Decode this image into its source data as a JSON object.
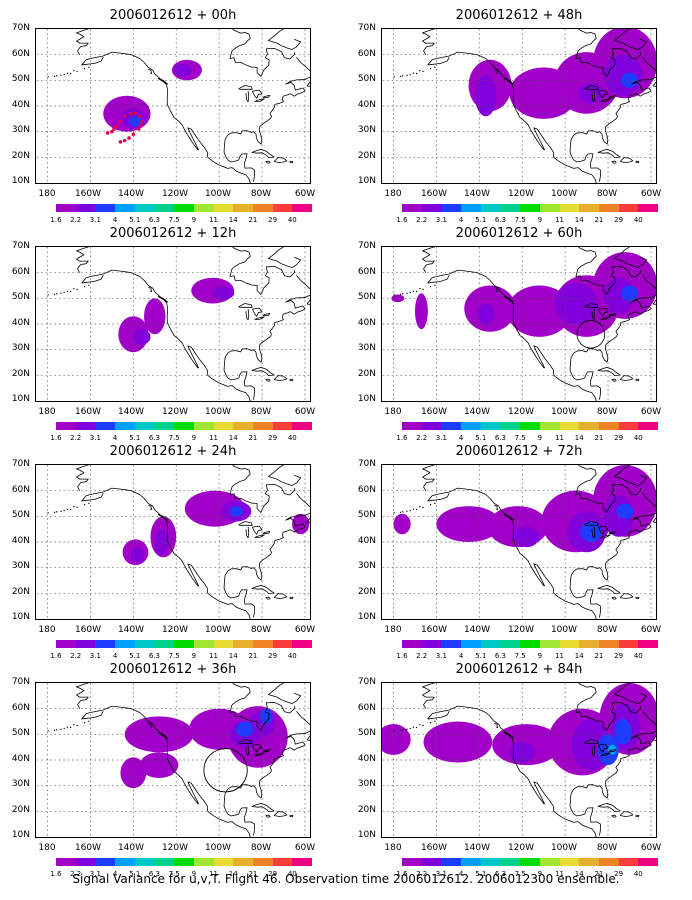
{
  "panels": [
    {
      "title": "2006012612 + 00h"
    },
    {
      "title": "2006012612 + 48h"
    },
    {
      "title": "2006012612 + 12h"
    },
    {
      "title": "2006012612 + 60h"
    },
    {
      "title": "2006012612 + 24h"
    },
    {
      "title": "2006012612 + 72h"
    },
    {
      "title": "2006012612 + 36h"
    },
    {
      "title": "2006012612 + 84h"
    }
  ],
  "axes": {
    "lat_labels": [
      "70N",
      "60N",
      "50N",
      "40N",
      "30N",
      "20N",
      "10N"
    ],
    "lon_labels": [
      "180",
      "160W",
      "140W",
      "120W",
      "100W",
      "80W",
      "60W"
    ],
    "lon_range": [
      -185,
      -58
    ],
    "lat_range": [
      10,
      70
    ]
  },
  "colorbar": {
    "labels": [
      "1.6",
      "2.2",
      "3.1",
      "4",
      "5.1",
      "6.3",
      "7.5",
      "9",
      "11",
      "14",
      "21",
      "29",
      "40"
    ],
    "colors": [
      "#a000c8",
      "#8200dc",
      "#1e3cff",
      "#00a0ff",
      "#00c8c8",
      "#00d28c",
      "#00dc00",
      "#a0e632",
      "#e6dc32",
      "#e6af2d",
      "#f08228",
      "#fa3c3c",
      "#f00082"
    ]
  },
  "colors": {
    "shade1": "#a000c8",
    "shade2": "#8200dc",
    "shade3": "#1e3cff",
    "shade4": "#00a0ff",
    "obs": "#e6004c"
  },
  "caption": "Signal Variance for u,v,T. Flight 46. Observation time 2006012612. 2006012300 ensemble."
}
